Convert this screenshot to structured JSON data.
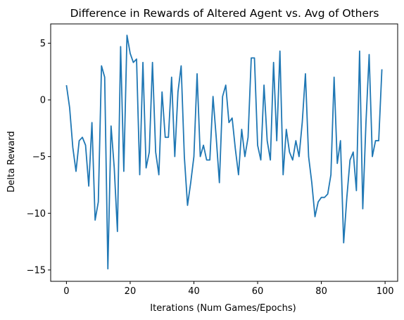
{
  "chart_data": {
    "type": "line",
    "title": "Difference in Rewards of Altered Agent vs. Avg of Others",
    "xlabel": "Iterations (Num Games/Epochs)",
    "ylabel": "Delta Reward",
    "xlim": [
      -4.95,
      103.95
    ],
    "ylim": [
      -16.0,
      6.7
    ],
    "xticks": [
      0,
      20,
      40,
      60,
      80,
      100
    ],
    "xtick_labels": [
      "0",
      "20",
      "40",
      "60",
      "80",
      "100"
    ],
    "yticks": [
      -15,
      -10,
      -5,
      0,
      5
    ],
    "ytick_labels": [
      "−15",
      "−10",
      "−5",
      "0",
      "5"
    ],
    "grid": false,
    "series": [
      {
        "name": "delta",
        "color": "#1f77b4",
        "x": [
          0,
          1,
          2,
          3,
          4,
          5,
          6,
          7,
          8,
          9,
          10,
          11,
          12,
          13,
          14,
          15,
          16,
          17,
          18,
          19,
          20,
          21,
          22,
          23,
          24,
          25,
          26,
          27,
          28,
          29,
          30,
          31,
          32,
          33,
          34,
          35,
          36,
          37,
          38,
          39,
          40,
          41,
          42,
          43,
          44,
          45,
          46,
          47,
          48,
          49,
          50,
          51,
          52,
          53,
          54,
          55,
          56,
          57,
          58,
          59,
          60,
          61,
          62,
          63,
          64,
          65,
          66,
          67,
          68,
          69,
          70,
          71,
          72,
          73,
          74,
          75,
          76,
          77,
          78,
          79,
          80,
          81,
          82,
          83,
          84,
          85,
          86,
          87,
          88,
          89,
          90,
          91,
          92,
          93,
          94,
          95,
          96,
          97,
          98,
          99
        ],
        "values": [
          1.3,
          -0.7,
          -4.2,
          -6.3,
          -3.6,
          -3.3,
          -4.0,
          -7.6,
          -2.0,
          -10.6,
          -9.0,
          3.0,
          2.0,
          -14.9,
          -2.3,
          -6.0,
          -11.6,
          4.7,
          -6.3,
          5.7,
          4.1,
          3.3,
          3.6,
          -6.6,
          3.3,
          -6.0,
          -4.6,
          3.3,
          -4.6,
          -6.6,
          0.7,
          -3.3,
          -3.3,
          2.0,
          -5.0,
          0.7,
          3.0,
          -5.0,
          -9.3,
          -7.3,
          -5.0,
          2.3,
          -5.0,
          -4.0,
          -5.3,
          -5.3,
          0.3,
          -3.3,
          -7.3,
          0.3,
          1.3,
          -2.0,
          -1.6,
          -4.3,
          -6.6,
          -2.6,
          -5.0,
          -3.3,
          3.7,
          3.7,
          -4.0,
          -5.3,
          1.3,
          -3.6,
          -5.3,
          3.3,
          -3.6,
          4.3,
          -6.6,
          -2.6,
          -4.6,
          -5.3,
          -3.6,
          -5.0,
          -2.0,
          2.3,
          -5.0,
          -7.3,
          -10.3,
          -9.0,
          -8.6,
          -8.6,
          -8.3,
          -6.6,
          2.0,
          -5.6,
          -3.6,
          -12.6,
          -8.6,
          -5.3,
          -4.6,
          -8.0,
          4.3,
          -9.6,
          -2.0,
          4.0,
          -5.0,
          -3.6,
          -3.6,
          2.7
        ]
      }
    ]
  }
}
